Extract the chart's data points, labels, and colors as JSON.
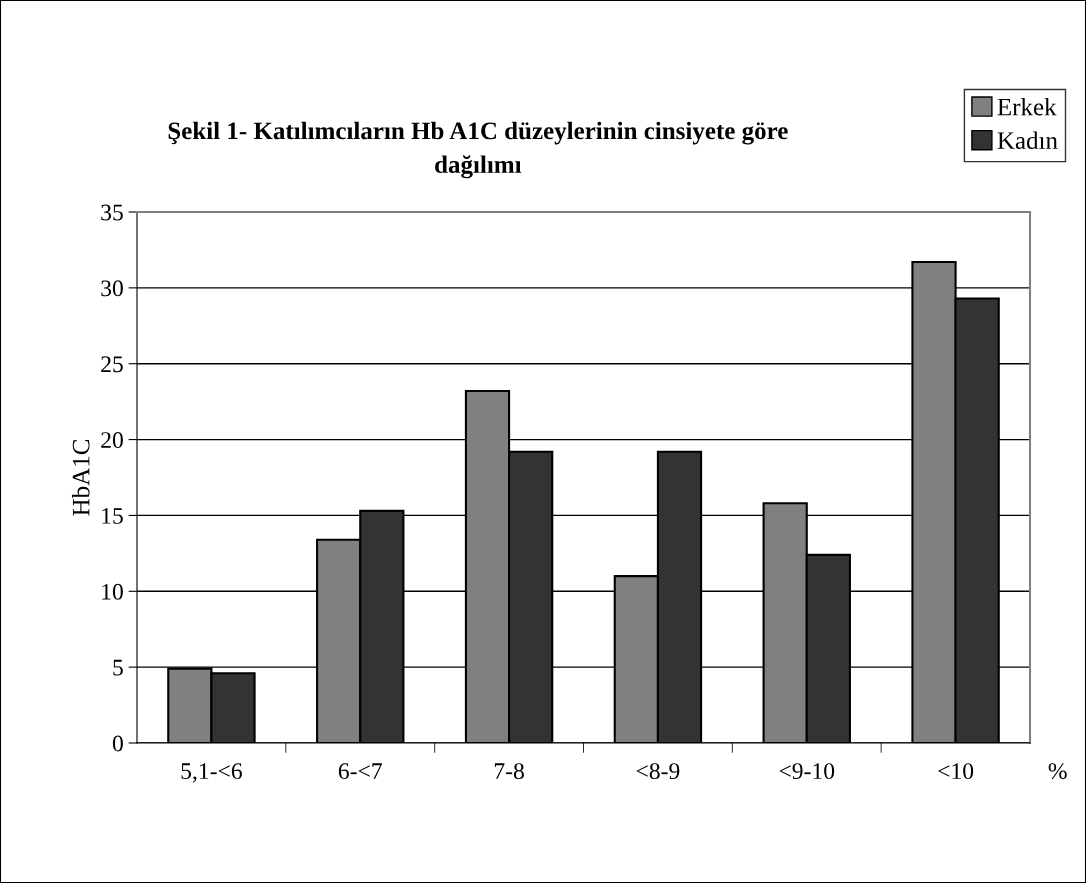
{
  "chart_data": {
    "type": "bar",
    "title": "Şekil 1- Katılımcıların Hb A1C düzeylerinin cinsiyete göre\ndağılımı",
    "xlabel": "%",
    "ylabel": "HbA1C",
    "categories": [
      "5,1-<6",
      "6-<7",
      "7-8",
      "<8-9",
      "<9-10",
      "<10"
    ],
    "series": [
      {
        "name": "Erkek",
        "color": "#808080",
        "values": [
          4.9,
          13.4,
          23.2,
          11.0,
          15.8,
          31.7
        ]
      },
      {
        "name": "Kadın",
        "color": "#333333",
        "values": [
          4.6,
          15.3,
          19.2,
          19.2,
          12.4,
          29.3
        ]
      }
    ],
    "ylim": [
      0,
      35
    ],
    "yticks": [
      0,
      5,
      10,
      15,
      20,
      25,
      30,
      35
    ],
    "grid": "y",
    "legend": "top right"
  }
}
